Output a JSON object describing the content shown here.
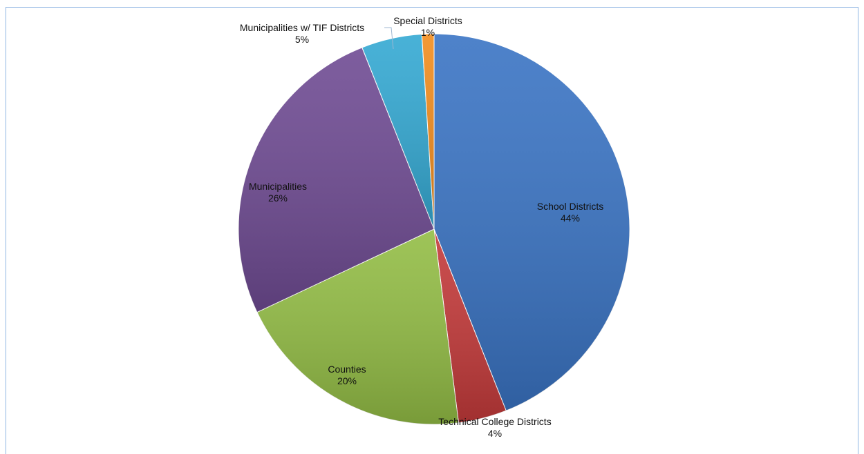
{
  "chart_data": {
    "type": "pie",
    "title": "",
    "slices": [
      {
        "label": "School Districts",
        "pct_label": "44%",
        "value": 44,
        "color": "#3a74c4"
      },
      {
        "label": "Technical College Districts",
        "pct_label": "4%",
        "value": 4,
        "color": "#c43a3a"
      },
      {
        "label": "Counties",
        "pct_label": "20%",
        "value": 20,
        "color": "#93bd45"
      },
      {
        "label": "Municipalities",
        "pct_label": "26%",
        "value": 26,
        "color": "#6f4b93"
      },
      {
        "label": "Municipalities w/ TIF Districts",
        "pct_label": "5%",
        "value": 5,
        "color": "#34a9d3"
      },
      {
        "label": "Special Districts",
        "pct_label": "1%",
        "value": 1,
        "color": "#f28d1e"
      }
    ],
    "legend": "none",
    "start_angle_deg": 0,
    "direction": "clockwise"
  }
}
